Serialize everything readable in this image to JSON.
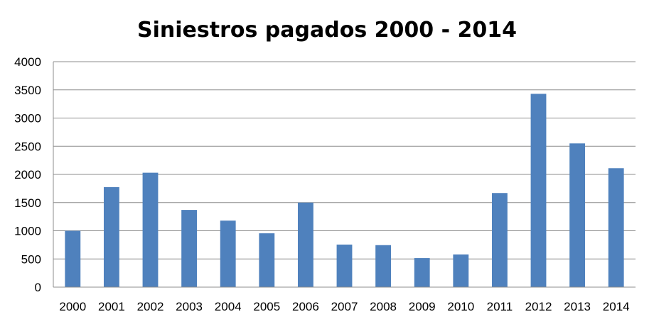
{
  "chart_data": {
    "type": "bar",
    "title": "Siniestros pagados 2000 - 2014",
    "xlabel": "",
    "ylabel": "",
    "categories": [
      "2000",
      "2001",
      "2002",
      "2003",
      "2004",
      "2005",
      "2006",
      "2007",
      "2008",
      "2009",
      "2010",
      "2011",
      "2012",
      "2013",
      "2014"
    ],
    "values": [
      1000,
      1775,
      2030,
      1370,
      1180,
      955,
      1500,
      755,
      745,
      515,
      580,
      1670,
      3430,
      2550,
      2110
    ],
    "ylim": [
      0,
      4000
    ],
    "yticks": [
      "0",
      "500",
      "1000",
      "1500",
      "2000",
      "2500",
      "3000",
      "3500",
      "4000"
    ],
    "grid": true,
    "legend": "none",
    "bar_color": "#4f81bd"
  }
}
